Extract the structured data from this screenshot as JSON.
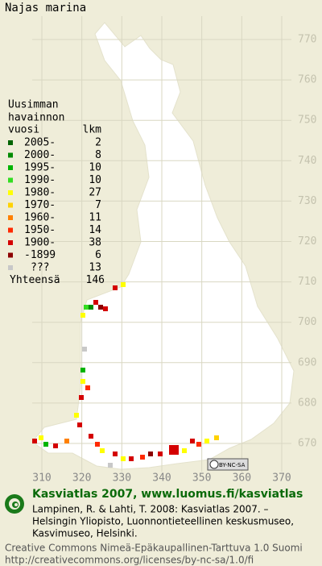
{
  "title": "Najas marina",
  "legend": {
    "header": [
      "Uusimman",
      "havainnon",
      "vuosi"
    ],
    "count_header": "lkm",
    "rows": [
      {
        "label": "2005-",
        "count": 2,
        "color": "#006400"
      },
      {
        "label": "2000-",
        "count": 8,
        "color": "#008a00"
      },
      {
        "label": "1995-",
        "count": 10,
        "color": "#00b400"
      },
      {
        "label": "1990-",
        "count": 10,
        "color": "#33dd22"
      },
      {
        "label": "1980-",
        "count": 27,
        "color": "#ffff00"
      },
      {
        "label": "1970-",
        "count": 7,
        "color": "#ffd200"
      },
      {
        "label": "1960-",
        "count": 11,
        "color": "#ff8000"
      },
      {
        "label": "1950-",
        "count": 14,
        "color": "#ff2a00"
      },
      {
        "label": "1900-",
        "count": 38,
        "color": "#d40000"
      },
      {
        "label": "-1899",
        "count": 6,
        "color": "#8c0000"
      },
      {
        "label": "???",
        "count": 13,
        "color": "#c8c8c8"
      }
    ],
    "total_label": "Yhteensä",
    "total": 146
  },
  "grid": {
    "north": [
      770,
      760,
      750,
      740,
      730,
      720,
      710,
      700,
      690,
      680,
      670
    ],
    "east": [
      310,
      320,
      330,
      340,
      350,
      360,
      370
    ]
  },
  "badge": "BY-NC-SA",
  "footer": {
    "heading": "Kasviatlas 2007, www.luomus.fi/kasviatlas",
    "citation": [
      "Lampinen, R. & Lahti, T. 2008: Kasviatlas 2007. –",
      "Helsingin Yliopisto, Luonnontieteellinen keskusmuseo,",
      "Kasvimuseo, Helsinki."
    ],
    "license": [
      "Creative Commons Nimeä-Epäkaupallinen-Tarttuva 1.0 Suomi",
      "http://creativecommons.org/licenses/by-nc-sa/1.0/fi"
    ]
  }
}
